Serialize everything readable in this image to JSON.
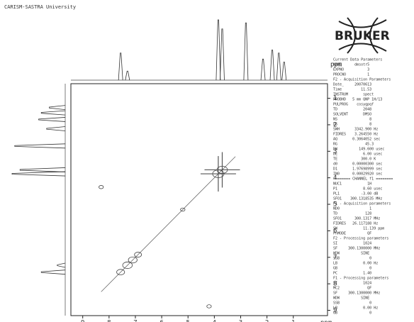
{
  "header": "CARISM-SASTRA University",
  "brand": "BRUKER",
  "chart_data": {
    "type": "cosy",
    "x_label": "ppm",
    "y_label": "ppm",
    "xlim": [
      9.45,
      -0.3
    ],
    "ylim": [
      0.45,
      9.2
    ],
    "xticks": [
      9,
      8,
      7,
      6,
      5,
      4,
      3,
      2,
      1
    ],
    "yticks": [
      1,
      2,
      3,
      4,
      5,
      6,
      7,
      8,
      9
    ],
    "projection": {
      "ppm": [
        7.56,
        7.3,
        3.85,
        3.7,
        2.8,
        2.15,
        1.8,
        1.55,
        1.35
      ],
      "intensity": [
        0.45,
        0.15,
        1.0,
        0.85,
        0.95,
        0.35,
        0.5,
        0.45,
        0.3
      ]
    },
    "cross_peaks": {
      "f2": [
        7.56,
        7.3,
        7.1,
        6.9,
        5.2,
        3.85,
        3.7,
        8.3,
        4.2
      ],
      "f1": [
        7.56,
        7.3,
        7.1,
        6.9,
        5.2,
        3.85,
        3.7,
        4.35,
        8.85
      ],
      "intensity": [
        0.6,
        0.8,
        0.7,
        0.5,
        0.2,
        1.0,
        0.9,
        0.2,
        0.2
      ]
    }
  },
  "parameters": [
    "Current Data Parameters",
    "NAME      dmsotr5",
    "EXPNO           3",
    "PROCNO          1",
    "F2 - Acquisition Parameters",
    "Date_     20070613",
    "Time         11.53",
    "INSTRUM       spect",
    "PROBHD   5 mm QNP 1H/13",
    "PULPROG    cosygpqf",
    "TD            2048",
    "SOLVENT       DMSO",
    "NS               8",
    "DS               8",
    "SWH       3342.900 Hz",
    "FIDRES    3.264550 Hz",
    "AQ       0.3064052 sec",
    "RG             45.3",
    "DW          149.600 usec",
    "DE            6.00 usec",
    "TE           300.0 K",
    "d0       0.00000300 sec",
    "D1       1.97698999 sec",
    "IN0      0.00029920 sec",
    "======== CHANNEL f1 ========",
    "NUC1            1H",
    "P1            8.60 usec",
    "PL1          -3.00 dB",
    "SFO1    300.1318535 MHz",
    "F1 - Acquisition parameters",
    "ND0              1",
    "TD             128",
    "SFO1      300.1317 MHz",
    "FIDRES   26.117188 Hz",
    "SW            11.139 ppm",
    "FnMODE          QF",
    "F2 - Processing parameters",
    "SI            1024",
    "SF     300.1300000 MHz",
    "WDW          SINE",
    "SSB              0",
    "LB            0.00 Hz",
    "GB               0",
    "PC            1.40",
    "F1 - Processing parameters",
    "SI            1024",
    "MC2             QF",
    "SF     300.1300000 MHz",
    "WDW          SINE",
    "SSB              0",
    "LB            0.00 Hz",
    "GB               0"
  ]
}
